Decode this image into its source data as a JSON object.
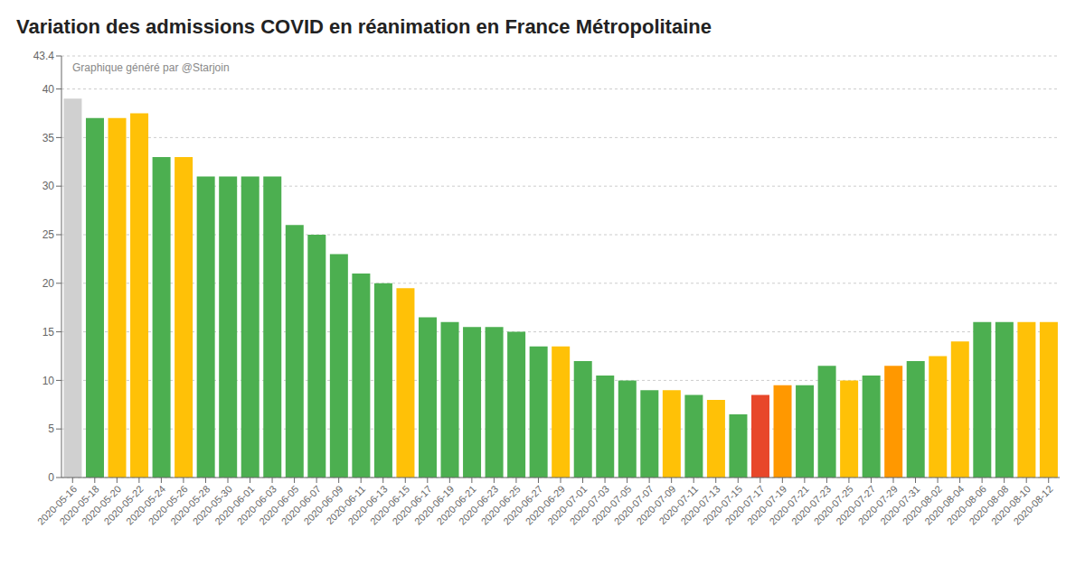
{
  "chart_data": {
    "type": "bar",
    "title": "Variation des admissions COVID en réanimation en France Métropolitaine",
    "annotations": [
      "Graphique généré par @Starjoin"
    ],
    "categories": [
      "2020-05-16",
      "2020-05-18",
      "2020-05-20",
      "2020-05-22",
      "2020-05-24",
      "2020-05-26",
      "2020-05-28",
      "2020-05-30",
      "2020-06-01",
      "2020-06-03",
      "2020-06-05",
      "2020-06-07",
      "2020-06-09",
      "2020-06-11",
      "2020-06-13",
      "2020-06-15",
      "2020-06-17",
      "2020-06-19",
      "2020-06-21",
      "2020-06-23",
      "2020-06-25",
      "2020-06-27",
      "2020-06-29",
      "2020-07-01",
      "2020-07-03",
      "2020-07-05",
      "2020-07-07",
      "2020-07-09",
      "2020-07-11",
      "2020-07-13",
      "2020-07-15",
      "2020-07-17",
      "2020-07-19",
      "2020-07-21",
      "2020-07-23",
      "2020-07-25",
      "2020-07-27",
      "2020-07-29",
      "2020-07-31",
      "2020-08-02",
      "2020-08-04",
      "2020-08-06",
      "2020-08-08",
      "2020-08-10",
      "2020-08-12"
    ],
    "values": [
      39.0,
      37.0,
      37.0,
      37.5,
      33.0,
      33.0,
      31.0,
      31.0,
      31.0,
      31.0,
      26.0,
      25.0,
      23.0,
      21.0,
      20.0,
      19.5,
      16.5,
      16.0,
      15.5,
      15.5,
      15.0,
      13.5,
      13.5,
      12.0,
      10.5,
      10.0,
      9.0,
      9.0,
      8.5,
      8.0,
      6.5,
      8.5,
      9.5,
      9.5,
      11.5,
      10.0,
      10.5,
      11.5,
      12.0,
      12.5,
      14.0,
      16.0,
      16.0,
      16.0,
      16.0
    ],
    "colors": [
      "#d0d0d0",
      "#4caf50",
      "#ffc107",
      "#ffc107",
      "#4caf50",
      "#ffc107",
      "#4caf50",
      "#4caf50",
      "#4caf50",
      "#4caf50",
      "#4caf50",
      "#4caf50",
      "#4caf50",
      "#4caf50",
      "#4caf50",
      "#ffc107",
      "#4caf50",
      "#4caf50",
      "#4caf50",
      "#4caf50",
      "#4caf50",
      "#4caf50",
      "#ffc107",
      "#4caf50",
      "#4caf50",
      "#4caf50",
      "#4caf50",
      "#ffc107",
      "#4caf50",
      "#ffc107",
      "#4caf50",
      "#e8472a",
      "#ff9800",
      "#4caf50",
      "#4caf50",
      "#ffc107",
      "#4caf50",
      "#ff9800",
      "#4caf50",
      "#ffc107",
      "#ffc107",
      "#4caf50",
      "#4caf50",
      "#ffc107",
      "#ffc107"
    ],
    "ylim": [
      0,
      43.4
    ],
    "yticks": [
      0,
      5,
      10,
      15,
      20,
      25,
      30,
      35,
      40,
      43.4
    ],
    "grid": "y"
  }
}
